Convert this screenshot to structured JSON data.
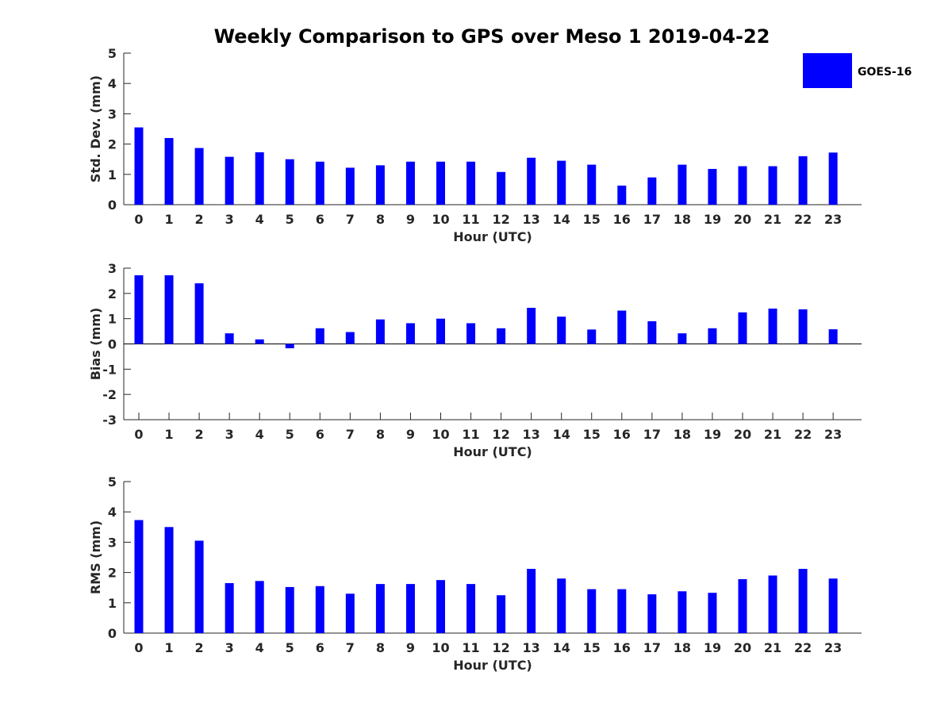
{
  "figure": {
    "title": "Weekly Comparison to GPS over Meso 1 2019-04-22",
    "bar_color": "#0000FF",
    "legend": {
      "label": "GOES-16",
      "placement": "top-right"
    }
  },
  "chart_data": [
    {
      "type": "bar",
      "xlabel": "Hour (UTC)",
      "ylabel": "Std. Dev. (mm)",
      "ylim": [
        0,
        5
      ],
      "yticks": [
        0,
        1,
        2,
        3,
        4,
        5
      ],
      "categories": [
        "0",
        "1",
        "2",
        "3",
        "4",
        "5",
        "6",
        "7",
        "8",
        "9",
        "10",
        "11",
        "12",
        "13",
        "14",
        "15",
        "16",
        "17",
        "18",
        "19",
        "20",
        "21",
        "22",
        "23"
      ],
      "series": [
        {
          "name": "GOES-16",
          "values": [
            2.55,
            2.2,
            1.87,
            1.58,
            1.73,
            1.5,
            1.42,
            1.22,
            1.3,
            1.42,
            1.42,
            1.42,
            1.08,
            1.55,
            1.45,
            1.32,
            0.63,
            0.9,
            1.32,
            1.18,
            1.27,
            1.27,
            1.6,
            1.72
          ]
        }
      ]
    },
    {
      "type": "bar",
      "xlabel": "Hour (UTC)",
      "ylabel": "Bias (mm)",
      "ylim": [
        -3,
        3
      ],
      "yticks": [
        -3,
        -2,
        -1,
        0,
        1,
        2,
        3
      ],
      "categories": [
        "0",
        "1",
        "2",
        "3",
        "4",
        "5",
        "6",
        "7",
        "8",
        "9",
        "10",
        "11",
        "12",
        "13",
        "14",
        "15",
        "16",
        "17",
        "18",
        "19",
        "20",
        "21",
        "22",
        "23"
      ],
      "series": [
        {
          "name": "GOES-16",
          "values": [
            2.72,
            2.72,
            2.4,
            0.42,
            0.18,
            -0.17,
            0.62,
            0.47,
            0.97,
            0.82,
            1.0,
            0.82,
            0.62,
            1.43,
            1.08,
            0.57,
            1.32,
            0.9,
            0.42,
            0.62,
            1.25,
            1.4,
            1.37,
            0.58
          ]
        }
      ]
    },
    {
      "type": "bar",
      "xlabel": "Hour (UTC)",
      "ylabel": "RMS (mm)",
      "ylim": [
        0,
        5
      ],
      "yticks": [
        0,
        1,
        2,
        3,
        4,
        5
      ],
      "categories": [
        "0",
        "1",
        "2",
        "3",
        "4",
        "5",
        "6",
        "7",
        "8",
        "9",
        "10",
        "11",
        "12",
        "13",
        "14",
        "15",
        "16",
        "17",
        "18",
        "19",
        "20",
        "21",
        "22",
        "23"
      ],
      "series": [
        {
          "name": "GOES-16",
          "values": [
            3.73,
            3.5,
            3.05,
            1.65,
            1.72,
            1.52,
            1.55,
            1.3,
            1.62,
            1.62,
            1.75,
            1.62,
            1.25,
            2.12,
            1.8,
            1.45,
            1.45,
            1.28,
            1.38,
            1.33,
            1.78,
            1.9,
            2.12,
            1.8
          ]
        }
      ]
    }
  ]
}
